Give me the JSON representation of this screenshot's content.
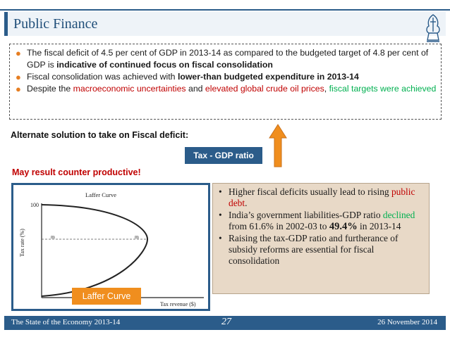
{
  "header": {
    "title": "Public Finance"
  },
  "bullets": [
    {
      "parts": [
        {
          "text": "The fiscal deficit of 4.5 per cent of GDP in 2013-14 as compared to the budgeted target of 4.8 per cent of GDP is ",
          "style": "normal"
        },
        {
          "text": "indicative of continued focus on fiscal consolidation",
          "style": "bold"
        }
      ]
    },
    {
      "parts": [
        {
          "text": "Fiscal consolidation was achieved with ",
          "style": "normal"
        },
        {
          "text": "lower-than budgeted expenditure in 2013-14",
          "style": "bold"
        }
      ]
    },
    {
      "parts": [
        {
          "text": "Despite the ",
          "style": "normal"
        },
        {
          "text": "macroeconomic uncertainties",
          "style": "red"
        },
        {
          "text": " and ",
          "style": "normal"
        },
        {
          "text": "elevated global crude oil prices",
          "style": "red"
        },
        {
          "text": ", ",
          "style": "normal"
        },
        {
          "text": "fiscal targets were achieved",
          "style": "green"
        }
      ]
    }
  ],
  "alternate_label": "Alternate solution to take on Fiscal deficit:",
  "tax_gdp_label": "Tax - GDP ratio",
  "warning": "May result counter productive!",
  "laffer": {
    "title": "Laffer Curve",
    "y_label": "Tax rate (%)",
    "x_label": "Tax revenue ($)",
    "top_tick": "100",
    "m_label": "m",
    "tag": "Laffer Curve"
  },
  "info_points": [
    {
      "parts": [
        {
          "text": "Higher fiscal deficits usually lead to rising ",
          "style": "normal"
        },
        {
          "text": "public debt",
          "style": "red"
        },
        {
          "text": ".",
          "style": "normal"
        }
      ]
    },
    {
      "parts": [
        {
          "text": "India’s government liabilities-GDP ratio ",
          "style": "normal"
        },
        {
          "text": "declined",
          "style": "green"
        },
        {
          "text": " from 61.6% in 2002-03 to ",
          "style": "normal"
        },
        {
          "text": "49.4%",
          "style": "bold"
        },
        {
          "text": " in 2013-14",
          "style": "normal"
        }
      ]
    },
    {
      "parts": [
        {
          "text": "Raising the tax-GDP ratio and furtherance of subsidy reforms are essential for fiscal consolidation",
          "style": "normal"
        }
      ]
    }
  ],
  "footer": {
    "left": "The State of the Economy 2013-14",
    "page": "27",
    "date": "26 November 2014"
  },
  "icons": {
    "bullet": "orange-dot",
    "arrow": "up-arrow-orange",
    "logo": "emblem-logo"
  },
  "colors": {
    "accent": "#2b5c8a",
    "orange": "#f08e1e",
    "red": "#c00000",
    "green": "#00b050",
    "info_bg": "#e8d9c7"
  }
}
